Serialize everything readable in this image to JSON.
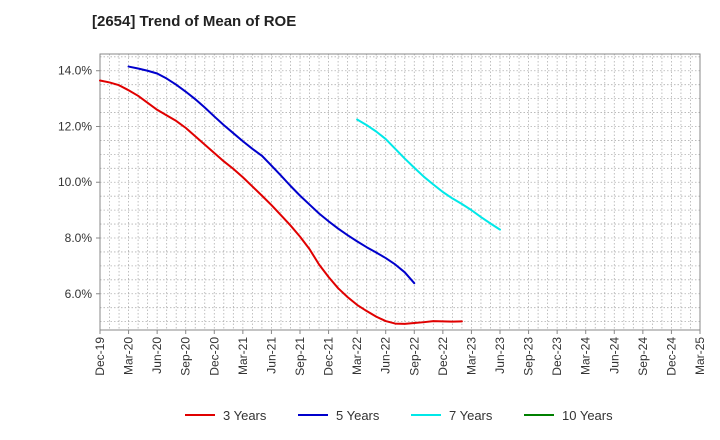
{
  "chart_data": {
    "type": "line",
    "title": "[2654]  Trend of Mean of ROE",
    "xlabel": "",
    "ylabel": "",
    "x_tick_labels": [
      "Dec-19",
      "Mar-20",
      "Jun-20",
      "Sep-20",
      "Dec-20",
      "Mar-21",
      "Jun-21",
      "Sep-21",
      "Dec-21",
      "Mar-22",
      "Jun-22",
      "Sep-22",
      "Dec-22",
      "Mar-23",
      "Jun-23",
      "Sep-23",
      "Dec-23",
      "Mar-24",
      "Jun-24",
      "Sep-24",
      "Dec-24",
      "Mar-25"
    ],
    "y_tick_values": [
      6.0,
      8.0,
      10.0,
      12.0,
      14.0
    ],
    "y_tick_labels": [
      "6.0%",
      "8.0%",
      "10.0%",
      "12.0%",
      "14.0%"
    ],
    "ylim": [
      4.7,
      14.6
    ],
    "grid": true,
    "legend_position": "bottom",
    "series": [
      {
        "name": "3 Years",
        "color": "#e00000",
        "start_index": 0,
        "values": [
          13.65,
          13.58,
          13.48,
          13.3,
          13.1,
          12.85,
          12.6,
          12.4,
          12.2,
          11.95,
          11.65,
          11.35,
          11.05,
          10.75,
          10.48,
          10.18,
          9.85,
          9.52,
          9.18,
          8.82,
          8.45,
          8.05,
          7.6,
          7.05,
          6.6,
          6.2,
          5.88,
          5.6,
          5.38,
          5.18,
          5.02,
          4.93,
          4.92,
          4.95,
          4.98,
          5.02,
          5.01,
          5.0,
          5.01
        ]
      },
      {
        "name": "5 Years",
        "color": "#0000cc",
        "start_index": 3,
        "values": [
          14.15,
          14.08,
          14.0,
          13.9,
          13.72,
          13.5,
          13.25,
          12.98,
          12.68,
          12.36,
          12.05,
          11.76,
          11.47,
          11.2,
          10.95,
          10.6,
          10.24,
          9.87,
          9.52,
          9.2,
          8.88,
          8.6,
          8.34,
          8.1,
          7.88,
          7.67,
          7.48,
          7.28,
          7.05,
          6.77,
          6.38
        ]
      },
      {
        "name": "7 Years",
        "color": "#00e8e8",
        "start_index": 27,
        "values": [
          12.25,
          12.05,
          11.82,
          11.55,
          11.2,
          10.85,
          10.52,
          10.2,
          9.92,
          9.65,
          9.42,
          9.22,
          9.0,
          8.75,
          8.52,
          8.3
        ]
      },
      {
        "name": "10 Years",
        "color": "#008000",
        "start_index": 0,
        "values": []
      }
    ]
  }
}
